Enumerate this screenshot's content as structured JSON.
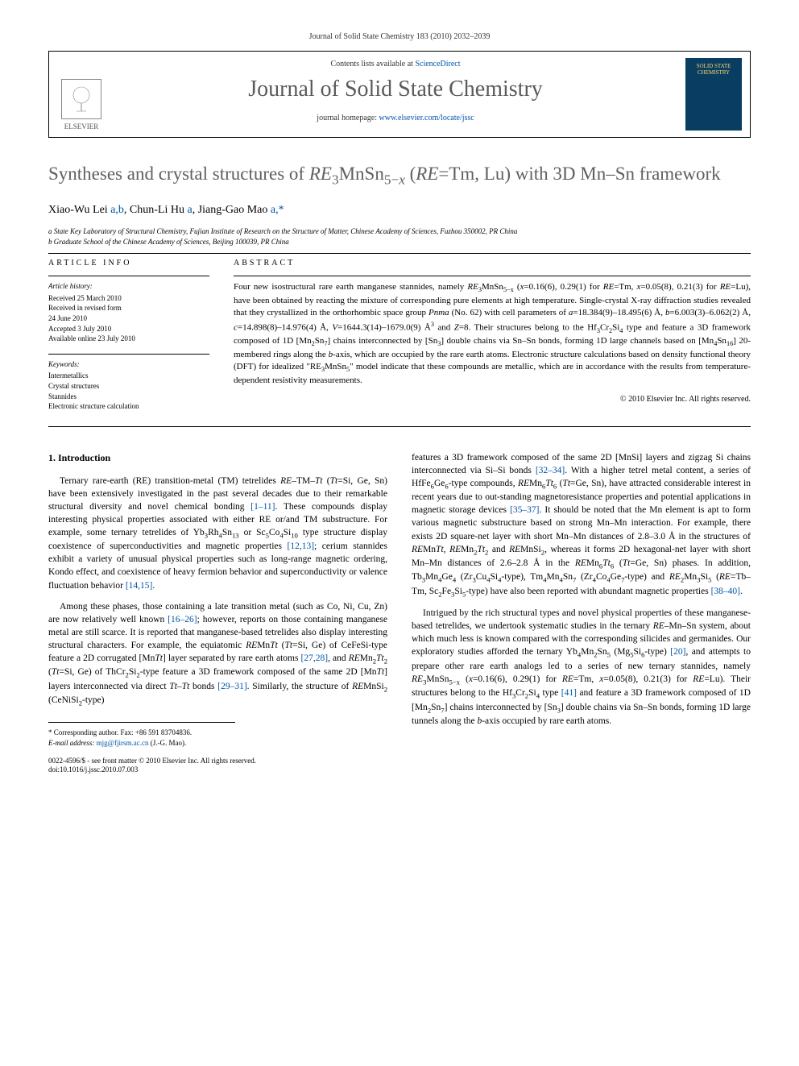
{
  "journal_ref": "Journal of Solid State Chemistry 183 (2010) 2032–2039",
  "header": {
    "publisher": "ELSEVIER",
    "contents_prefix": "Contents lists available at ",
    "contents_link": "ScienceDirect",
    "journal_name": "Journal of Solid State Chemistry",
    "homepage_prefix": "journal homepage: ",
    "homepage_url": "www.elsevier.com/locate/jssc",
    "cover_text": "SOLID STATE CHEMISTRY"
  },
  "title_html": "Syntheses and crystal structures of <i>RE</i><sub>3</sub>MnSn<sub>5−<i>x</i></sub> (<i>RE</i>=Tm, Lu) with 3D Mn–Sn framework",
  "authors_html": "Xiao-Wu Lei <a href=\"#\">a,b</a>, Chun-Li Hu <a href=\"#\">a</a>, Jiang-Gao Mao <a href=\"#\">a,*</a>",
  "affiliations": [
    "a State Key Laboratory of Structural Chemistry, Fujian Institute of Research on the Structure of Matter, Chinese Academy of Sciences, Fuzhou 350002, PR China",
    "b Graduate School of the Chinese Academy of Sciences, Beijing 100039, PR China"
  ],
  "article_info": {
    "head": "ARTICLE INFO",
    "history_head": "Article history:",
    "history": [
      "Received 25 March 2010",
      "Received in revised form",
      "24 June 2010",
      "Accepted 3 July 2010",
      "Available online 23 July 2010"
    ],
    "keywords_head": "Keywords:",
    "keywords": [
      "Intermetallics",
      "Crystal structures",
      "Stannides",
      "Electronic structure calculation"
    ]
  },
  "abstract": {
    "head": "ABSTRACT",
    "text_html": "Four new isostructural rare earth manganese stannides, namely <i>RE</i><sub>3</sub>MnSn<sub>5−x</sub> (<i>x</i>=0.16(6), 0.29(1) for <i>RE</i>=Tm, <i>x</i>=0.05(8), 0.21(3) for <i>RE</i>=Lu), have been obtained by reacting the mixture of corresponding pure elements at high temperature. Single-crystal X-ray diffraction studies revealed that they crystallized in the orthorhombic space group <i>Pnma</i> (No. 62) with cell parameters of <i>a</i>=18.384(9)–18.495(6) Å, <i>b</i>=6.003(3)–6.062(2) Å, <i>c</i>=14.898(8)–14.976(4) Å, <i>V</i>=1644.3(14)–1679.0(9) Å<sup>3</sup> and <i>Z</i>=8. Their structures belong to the Hf<sub>3</sub>Cr<sub>2</sub>Si<sub>4</sub> type and feature a 3D framework composed of 1D [Mn<sub>2</sub>Sn<sub>7</sub>] chains interconnected by [Sn<sub>3</sub>] double chains via Sn–Sn bonds, forming 1D large channels based on [Mn<sub>4</sub>Sn<sub>16</sub>] 20-membered rings along the <i>b</i>-axis, which are occupied by the rare earth atoms. Electronic structure calculations based on density functional theory (DFT) for idealized \"RE<sub>3</sub>MnSn<sub>5</sub>\" model indicate that these compounds are metallic, which are in accordance with the results from temperature-dependent resistivity measurements.",
    "copyright": "© 2010 Elsevier Inc. All rights reserved."
  },
  "section1_head": "1. Introduction",
  "col1_paras_html": [
    "Ternary rare-earth (RE) transition-metal (TM) tetrelides <i>RE</i>–TM–<i>Tt</i> (<i>Tt</i>=Si, Ge, Sn) have been extensively investigated in the past several decades due to their remarkable structural diversity and novel chemical bonding <a href=\"#\">[1–11]</a>. These compounds display interesting physical properties associated with either RE or/and TM substructure. For example, some ternary tetrelides of Yb<sub>3</sub>Rh<sub>4</sub>Sn<sub>13</sub> or Sc<sub>5</sub>Co<sub>4</sub>Si<sub>10</sub> type structure display coexistence of superconductivities and magnetic properties <a href=\"#\">[12,13]</a>; cerium stannides exhibit a variety of unusual physical properties such as long-range magnetic ordering, Kondo effect, and coexistence of heavy fermion behavior and superconductivity or valence fluctuation behavior <a href=\"#\">[14,15]</a>.",
    "Among these phases, those containing a late transition metal (such as Co, Ni, Cu, Zn) are now relatively well known <a href=\"#\">[16–26]</a>; however, reports on those containing manganese metal are still scarce. It is reported that manganese-based tetrelides also display interesting structural characters. For example, the equiatomic <i>RE</i>Mn<i>Tt</i> (<i>Tt</i>=Si, Ge) of CeFeSi-type feature a 2D corrugated [Mn<i>Tt</i>] layer separated by rare earth atoms <a href=\"#\">[27,28]</a>, and <i>RE</i>Mn<sub>2</sub><i>Tt</i><sub>2</sub> (<i>Tt</i>=Si, Ge) of ThCr<sub>2</sub>Si<sub>2</sub>-type feature a 3D framework composed of the same 2D [Mn<i>Tt</i>] layers interconnected via direct <i>Tt</i>–<i>Tt</i> bonds <a href=\"#\">[29–31]</a>. Similarly, the structure of <i>RE</i>MnSi<sub>2</sub> (CeNiSi<sub>2</sub>-type)"
  ],
  "col2_paras_html": [
    "features a 3D framework composed of the same 2D [MnSi] layers and zigzag Si chains interconnected via Si–Si bonds <a href=\"#\">[32–34]</a>. With a higher tetrel metal content, a series of HfFe<sub>6</sub>Ge<sub>6</sub>-type compounds, <i>RE</i>Mn<sub>6</sub><i>Tt</i><sub>6</sub> (<i>Tt</i>=Ge, Sn), have attracted considerable interest in recent years due to out-standing magnetoresistance properties and potential applications in magnetic storage devices <a href=\"#\">[35–37]</a>. It should be noted that the Mn element is apt to form various magnetic substructure based on strong Mn–Mn interaction. For example, there exists 2D square-net layer with short Mn–Mn distances of 2.8–3.0 Å in the structures of <i>RE</i>Mn<i>Tt</i>, <i>RE</i>Mn<sub>2</sub><i>Tt</i><sub>2</sub> and <i>RE</i>MnSi<sub>2</sub>, whereas it forms 2D hexagonal-net layer with short Mn–Mn distances of 2.6–2.8 Å in the <i>RE</i>Mn<sub>6</sub><i>Tt</i><sub>6</sub> (<i>Tt</i>=Ge, Sn) phases. In addition, Tb<sub>3</sub>Mn<sub>4</sub>Ge<sub>4</sub> (Zr<sub>3</sub>Cu<sub>4</sub>Si<sub>4</sub>-type), Tm<sub>4</sub>Mn<sub>4</sub>Sn<sub>7</sub> (Zr<sub>4</sub>Co<sub>4</sub>Ge<sub>7</sub>-type) and <i>RE</i><sub>2</sub>Mn<sub>3</sub>Si<sub>5</sub> (<i>RE</i>=Tb–Tm, Sc<sub>2</sub>Fe<sub>3</sub>Si<sub>5</sub>-type) have also been reported with abundant magnetic properties <a href=\"#\">[38–40]</a>.",
    "Intrigued by the rich structural types and novel physical properties of these manganese-based tetrelides, we undertook systematic studies in the ternary <i>RE</i>–Mn–Sn system, about which much less is known compared with the corresponding silicides and germanides. Our exploratory studies afforded the ternary Yb<sub>4</sub>Mn<sub>2</sub>Sn<sub>5</sub> (Mg<sub>5</sub>Si<sub>6</sub>-type) <a href=\"#\">[20]</a>, and attempts to prepare other rare earth analogs led to a series of new ternary stannides, namely <i>RE</i><sub>3</sub>MnSn<sub>5−x</sub> (<i>x</i>=0.16(6), 0.29(1) for <i>RE</i>=Tm, <i>x</i>=0.05(8), 0.21(3) for <i>RE</i>=Lu). Their structures belong to the Hf<sub>3</sub>Cr<sub>2</sub>Si<sub>4</sub> type <a href=\"#\">[41]</a> and feature a 3D framework composed of 1D [Mn<sub>2</sub>Sn<sub>7</sub>] chains interconnected by [Sn<sub>3</sub>] double chains via Sn–Sn bonds, forming 1D large tunnels along the <i>b</i>-axis occupied by rare earth atoms."
  ],
  "footnote": {
    "corresponding": "* Corresponding author. Fax: +86 591 83704836.",
    "email_label": "E-mail address: ",
    "email": "mjg@fjirsm.ac.cn",
    "email_suffix": " (J.-G. Mao)."
  },
  "doi_block": {
    "line1": "0022-4596/$ - see front matter © 2010 Elsevier Inc. All rights reserved.",
    "line2": "doi:10.1016/j.jssc.2010.07.003"
  },
  "colors": {
    "link": "#0055aa",
    "title_gray": "#606060",
    "cover_bg": "#0a3d62",
    "cover_fg": "#f5d76e"
  }
}
